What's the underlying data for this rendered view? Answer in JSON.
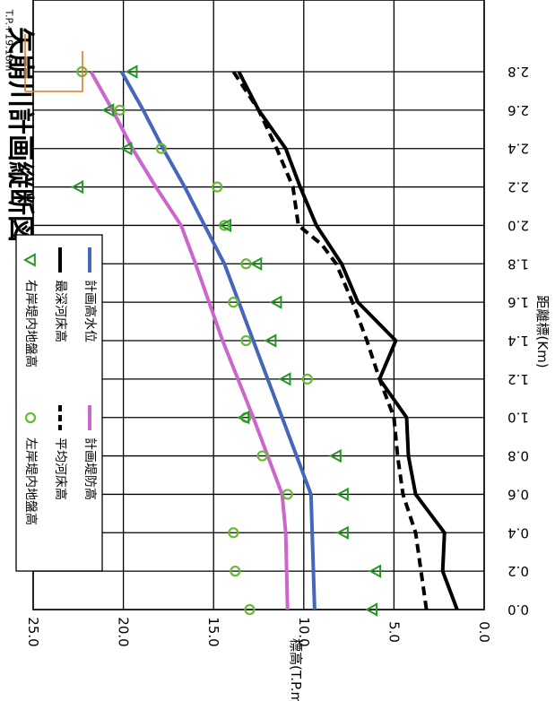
{
  "chart_data": {
    "type": "line",
    "title": "矢崩川計画縦断図",
    "xlabel": "距離標(Km)",
    "ylabel": "標高(T.P.m)",
    "xlim": [
      0,
      2.8
    ],
    "ylim": [
      0,
      25
    ],
    "x_ticks": [
      "0.0",
      "0.2",
      "0.4",
      "0.6",
      "0.8",
      "1.0",
      "1.2",
      "1.4",
      "1.6",
      "1.8",
      "2.0",
      "2.2",
      "2.4",
      "2.6",
      "2.8"
    ],
    "y_ticks": [
      "0.0",
      "5.0",
      "10.0",
      "15.0",
      "20.0",
      "25.0"
    ],
    "grid": true,
    "legend_position": "upper-left",
    "annotation": "T.P.+19.18m",
    "series": [
      {
        "name": "計画堤防高",
        "style": "line",
        "color": "#cc66cc",
        "x": [
          0.0,
          0.4,
          0.6,
          1.0,
          1.4,
          1.8,
          2.0,
          2.2,
          2.4,
          2.6,
          2.8
        ],
        "y": [
          10.9,
          11.0,
          11.2,
          12.8,
          14.5,
          16.0,
          16.8,
          18.2,
          19.5,
          20.6,
          21.8
        ]
      },
      {
        "name": "計画高水位",
        "style": "line",
        "color": "#4466bb",
        "x": [
          0.0,
          0.6,
          1.0,
          1.4,
          1.8,
          2.0,
          2.2,
          2.4,
          2.6,
          2.8
        ],
        "y": [
          9.4,
          9.6,
          11.2,
          12.8,
          14.4,
          15.5,
          16.6,
          17.8,
          18.9,
          20.1
        ]
      },
      {
        "name": "平均河床高",
        "style": "dashed",
        "color": "#000000",
        "x": [
          0.0,
          0.2,
          0.4,
          0.6,
          0.8,
          1.0,
          1.2,
          1.4,
          1.6,
          1.8,
          1.9,
          2.0,
          2.2,
          2.4,
          2.6,
          2.8
        ],
        "y": [
          3.2,
          3.5,
          3.8,
          4.5,
          4.8,
          5.0,
          5.8,
          6.5,
          7.3,
          8.2,
          9.0,
          10.3,
          10.6,
          11.5,
          12.5,
          13.9
        ]
      },
      {
        "name": "最深河床高",
        "style": "line",
        "color": "#000000",
        "x": [
          0.0,
          0.2,
          0.4,
          0.6,
          0.8,
          1.0,
          1.2,
          1.4,
          1.6,
          1.8,
          2.0,
          2.2,
          2.4,
          2.6,
          2.8
        ],
        "y": [
          1.5,
          2.3,
          2.2,
          3.8,
          4.2,
          4.3,
          5.8,
          4.9,
          7.0,
          7.9,
          9.3,
          10.2,
          11.0,
          12.5,
          13.6
        ]
      },
      {
        "name": "左岸堤内地盤高",
        "style": "circle",
        "color": "#66bb33",
        "x": [
          0.0,
          0.2,
          0.4,
          0.6,
          0.8,
          1.0,
          1.2,
          1.4,
          1.6,
          1.8,
          2.0,
          2.2,
          2.4,
          2.6,
          2.8
        ],
        "y": [
          13.0,
          13.8,
          13.9,
          10.9,
          12.3,
          13.2,
          9.8,
          13.2,
          13.9,
          13.2,
          14.4,
          14.8,
          17.9,
          20.2,
          22.3
        ]
      },
      {
        "name": "右岸堤内地盤高",
        "style": "triangle",
        "color": "#229922",
        "x": [
          0.0,
          0.2,
          0.4,
          0.6,
          0.8,
          1.0,
          1.2,
          1.4,
          1.6,
          1.8,
          2.0,
          2.2,
          2.4,
          2.6,
          2.8
        ],
        "y": [
          6.2,
          6.0,
          7.8,
          7.8,
          8.2,
          13.3,
          11.0,
          11.8,
          11.5,
          12.6,
          14.3,
          22.5,
          19.8,
          20.8,
          19.5
        ]
      }
    ]
  }
}
